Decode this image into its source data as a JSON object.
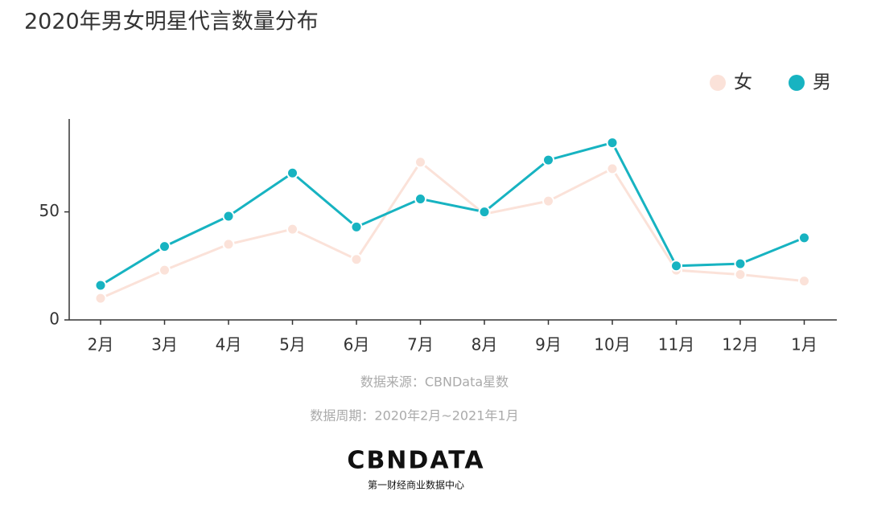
{
  "chart_data": {
    "type": "line",
    "title": "2020年男女明星代言数量分布",
    "categories": [
      "2月",
      "3月",
      "4月",
      "5月",
      "6月",
      "7月",
      "8月",
      "9月",
      "10月",
      "11月",
      "12月",
      "1月"
    ],
    "series": [
      {
        "name": "女",
        "color": "#fbe2d9",
        "values": [
          10,
          23,
          35,
          42,
          28,
          73,
          49,
          55,
          70,
          23,
          21,
          18
        ]
      },
      {
        "name": "男",
        "color": "#17b3c1",
        "values": [
          16,
          34,
          48,
          68,
          43,
          56,
          50,
          74,
          82,
          25,
          26,
          38
        ]
      }
    ],
    "ylim": [
      0,
      93
    ],
    "yticks": [
      0,
      50
    ],
    "grid": false,
    "legend": "top-right",
    "source": "数据来源：CBNData星数",
    "period": "数据周期：2020年2月~2021年1月"
  },
  "logo": {
    "name": "CBNDATA",
    "tagline": "第一财经商业数据中心"
  }
}
